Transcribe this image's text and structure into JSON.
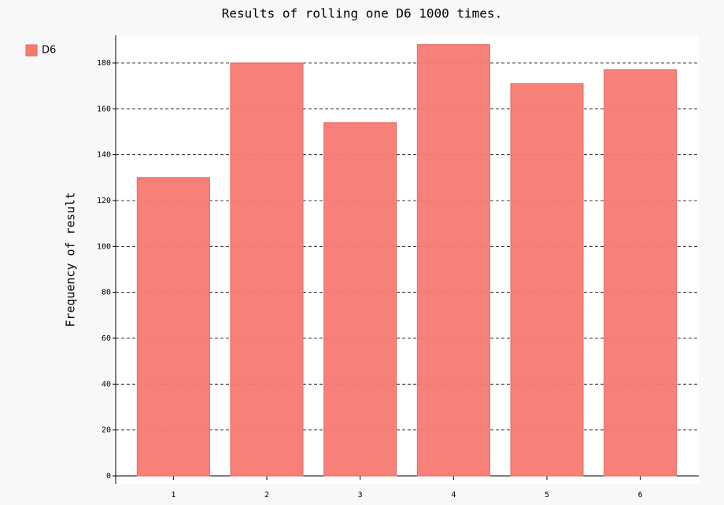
{
  "chart_data": {
    "type": "bar",
    "title": "Results of rolling one D6 1000 times.",
    "y_label": "Frequency of result",
    "categories": [
      "1",
      "2",
      "3",
      "4",
      "5",
      "6"
    ],
    "series": [
      {
        "name": "D6",
        "color": "#f77a72",
        "values": [
          130,
          180,
          154,
          188,
          171,
          177
        ]
      }
    ],
    "ylim": [
      0,
      192
    ],
    "yticks": [
      0,
      20,
      40,
      60,
      80,
      100,
      120,
      140,
      160,
      180
    ],
    "grid": true,
    "legend": "top-left"
  }
}
